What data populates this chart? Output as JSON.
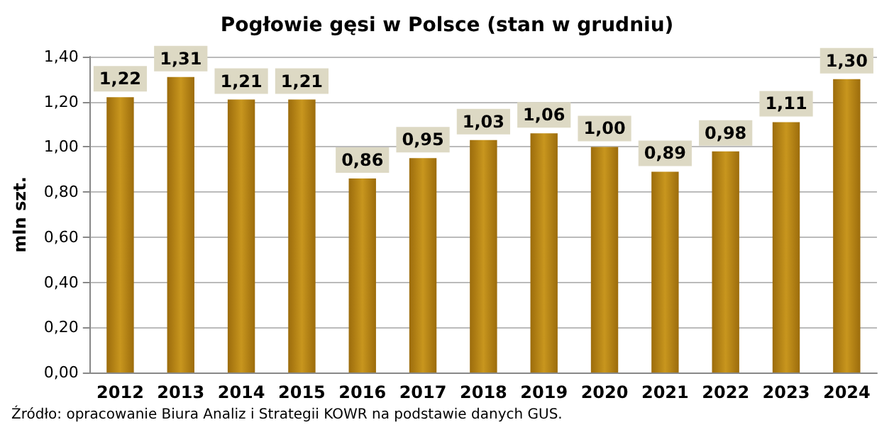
{
  "chart_data": {
    "type": "bar",
    "title": "Pogłowie gęsi w Polsce (stan w grudniu)",
    "ylabel": "mln szt.",
    "categories": [
      "2012",
      "2013",
      "2014",
      "2015",
      "2016",
      "2017",
      "2018",
      "2019",
      "2020",
      "2021",
      "2022",
      "2023",
      "2024"
    ],
    "values": [
      1.22,
      1.31,
      1.21,
      1.21,
      0.86,
      0.95,
      1.03,
      1.06,
      1.0,
      0.89,
      0.98,
      1.11,
      1.3
    ],
    "value_labels": [
      "1,22",
      "1,31",
      "1,21",
      "1,21",
      "0,86",
      "0,95",
      "1,03",
      "1,06",
      "1,00",
      "0,89",
      "0,98",
      "1,11",
      "1,30"
    ],
    "color": "#9c6c0c",
    "ylim": [
      0,
      1.4
    ],
    "yticks": [
      {
        "value": 0,
        "label": "0,00"
      },
      {
        "value": 0.2,
        "label": "0,20"
      },
      {
        "value": 0.4,
        "label": "0,40"
      },
      {
        "value": 0.6,
        "label": "0,60"
      },
      {
        "value": 0.8,
        "label": "0,80"
      },
      {
        "value": 1.0,
        "label": "1,00"
      },
      {
        "value": 1.2,
        "label": "1,20"
      },
      {
        "value": 1.4,
        "label": "1,40"
      }
    ],
    "grid": "y",
    "annotations": [
      "Źródło: opracowanie Biura Analiz i Strategii KOWR na podstawie danych GUS."
    ]
  }
}
